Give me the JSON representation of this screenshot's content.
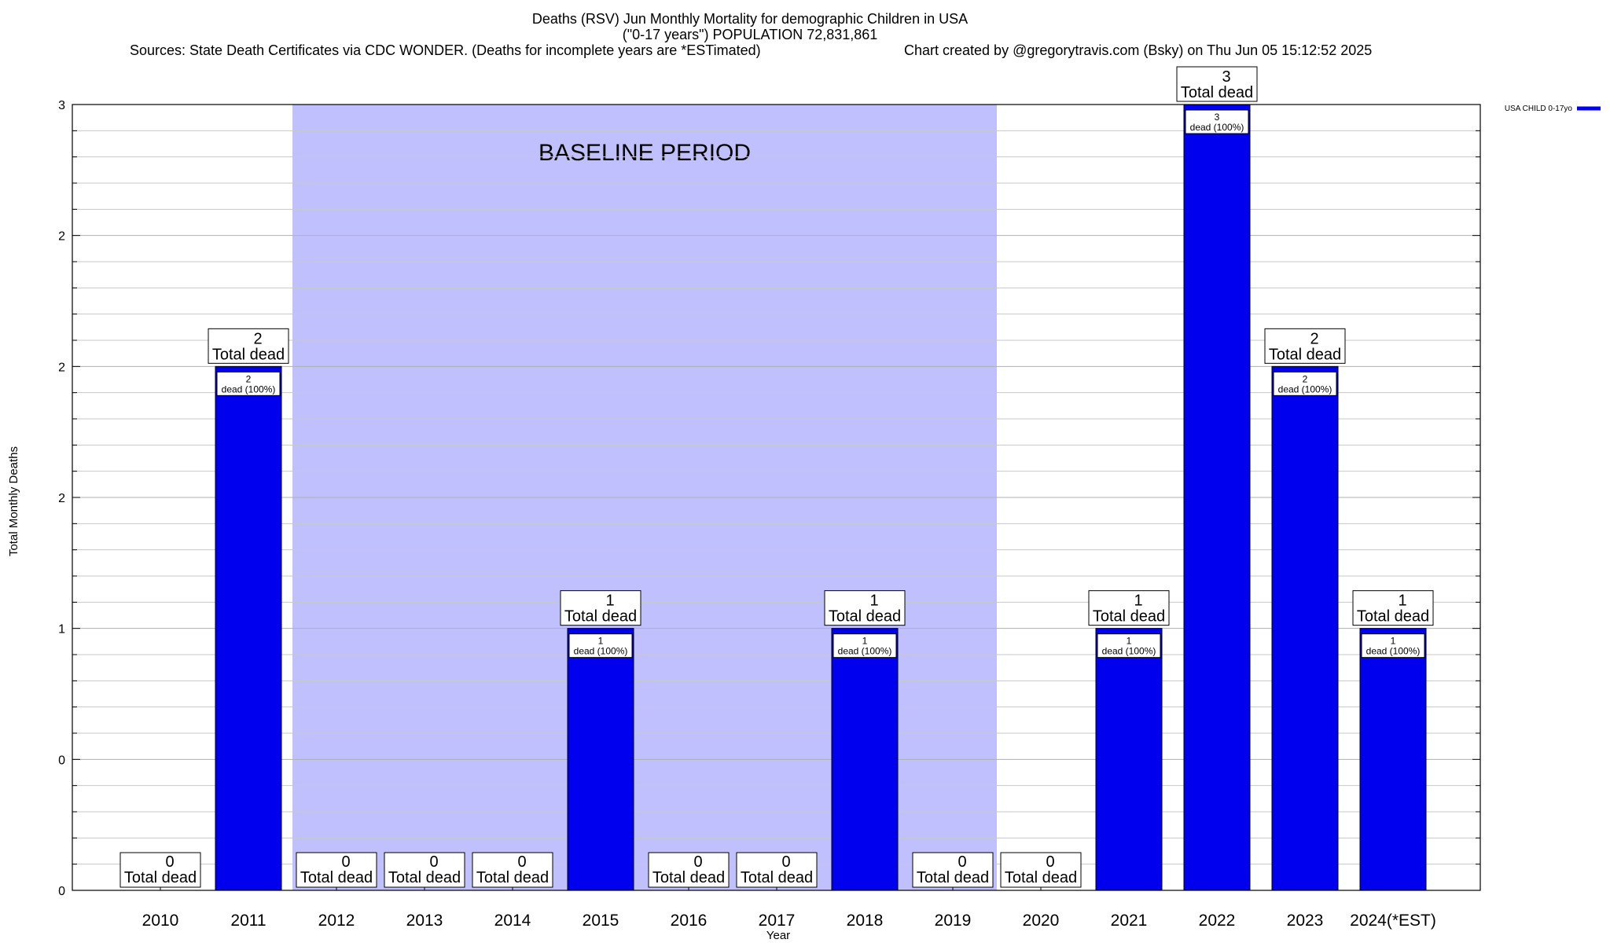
{
  "title": {
    "line1": "Deaths (RSV) Jun Monthly Mortality for demographic Children in USA",
    "line2": "(\"0-17 years\") POPULATION 72,831,861",
    "sources": "Sources: State Death Certificates via CDC WONDER. (Deaths for incomplete years are *ESTimated)",
    "credit": "Chart created by @gregorytravis.com (Bsky) on Thu Jun 05 15:12:52 2025"
  },
  "chart_data": {
    "type": "bar",
    "xlabel": "Year",
    "ylabel": "Total Monthly Deaths",
    "ylim": [
      0,
      3
    ],
    "y_ticks": [
      {
        "value": 0,
        "label": "0"
      },
      {
        "value": 0.5,
        "label": "0"
      },
      {
        "value": 1,
        "label": "1"
      },
      {
        "value": 1.5,
        "label": "2"
      },
      {
        "value": 2,
        "label": "2"
      },
      {
        "value": 2.5,
        "label": "2"
      },
      {
        "value": 3,
        "label": "3"
      }
    ],
    "minor_grid_step": 0.1,
    "grid": true,
    "categories": [
      "2010",
      "2011",
      "2012",
      "2013",
      "2014",
      "2015",
      "2016",
      "2017",
      "2018",
      "2019",
      "2020",
      "2021",
      "2022",
      "2023",
      "2024(*EST)"
    ],
    "series": [
      {
        "name": "USA CHILD 0-17yo",
        "color": "#0000ee",
        "values": [
          0,
          2,
          0,
          0,
          0,
          1,
          0,
          0,
          1,
          0,
          0,
          1,
          3,
          2,
          1
        ]
      }
    ],
    "total_label_suffix": "Total dead",
    "inner_label_suffix": "dead (100%)",
    "baseline": {
      "label": "BASELINE PERIOD",
      "start": "2012",
      "end": "2019",
      "color": "#c0c0ff"
    },
    "legend_position": "top-right"
  }
}
